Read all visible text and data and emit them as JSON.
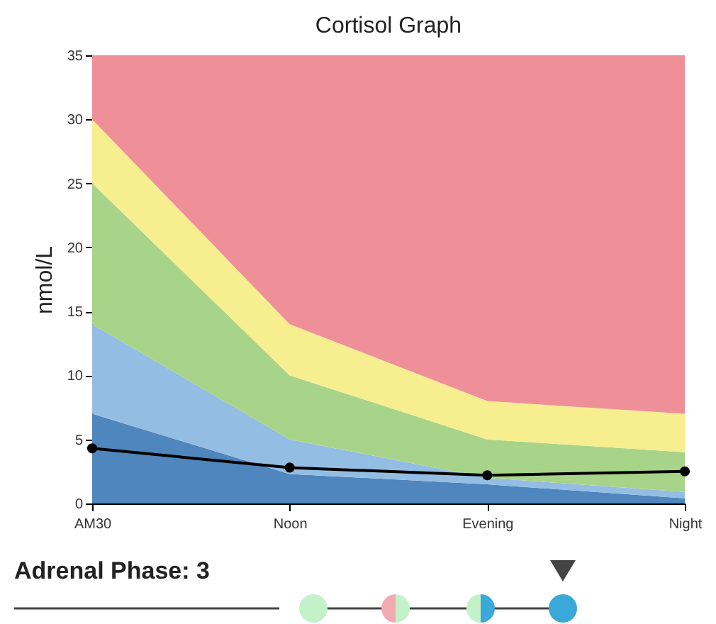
{
  "chart_data": {
    "type": "area",
    "title": "Cortisol Graph",
    "ylabel": "nmol/L",
    "stacked": true,
    "categories": [
      "AM30",
      "Noon",
      "Evening",
      "Night"
    ],
    "ylim": [
      0,
      35
    ],
    "yticks": [
      0,
      5,
      10,
      15,
      20,
      25,
      30,
      35
    ],
    "series": [
      {
        "color": "#4e86bd",
        "values": [
          7,
          2.3,
          1.5,
          0.4
        ]
      },
      {
        "color": "#94bde3",
        "values": [
          7,
          2.7,
          0.5,
          0.5
        ]
      },
      {
        "color": "#a8d48a",
        "values": [
          11,
          5,
          3,
          3.1
        ]
      },
      {
        "color": "#f7ee8f",
        "values": [
          5,
          4,
          3,
          3
        ]
      },
      {
        "color": "#ef8f97",
        "values": [
          5,
          21,
          27,
          28
        ]
      },
      {
        "type": "line",
        "color": "#000000",
        "marker": "circle",
        "values": [
          4.3,
          2.8,
          2.2,
          2.5
        ]
      }
    ],
    "annotations": [
      "Adrenal Phase: 3"
    ]
  }
}
